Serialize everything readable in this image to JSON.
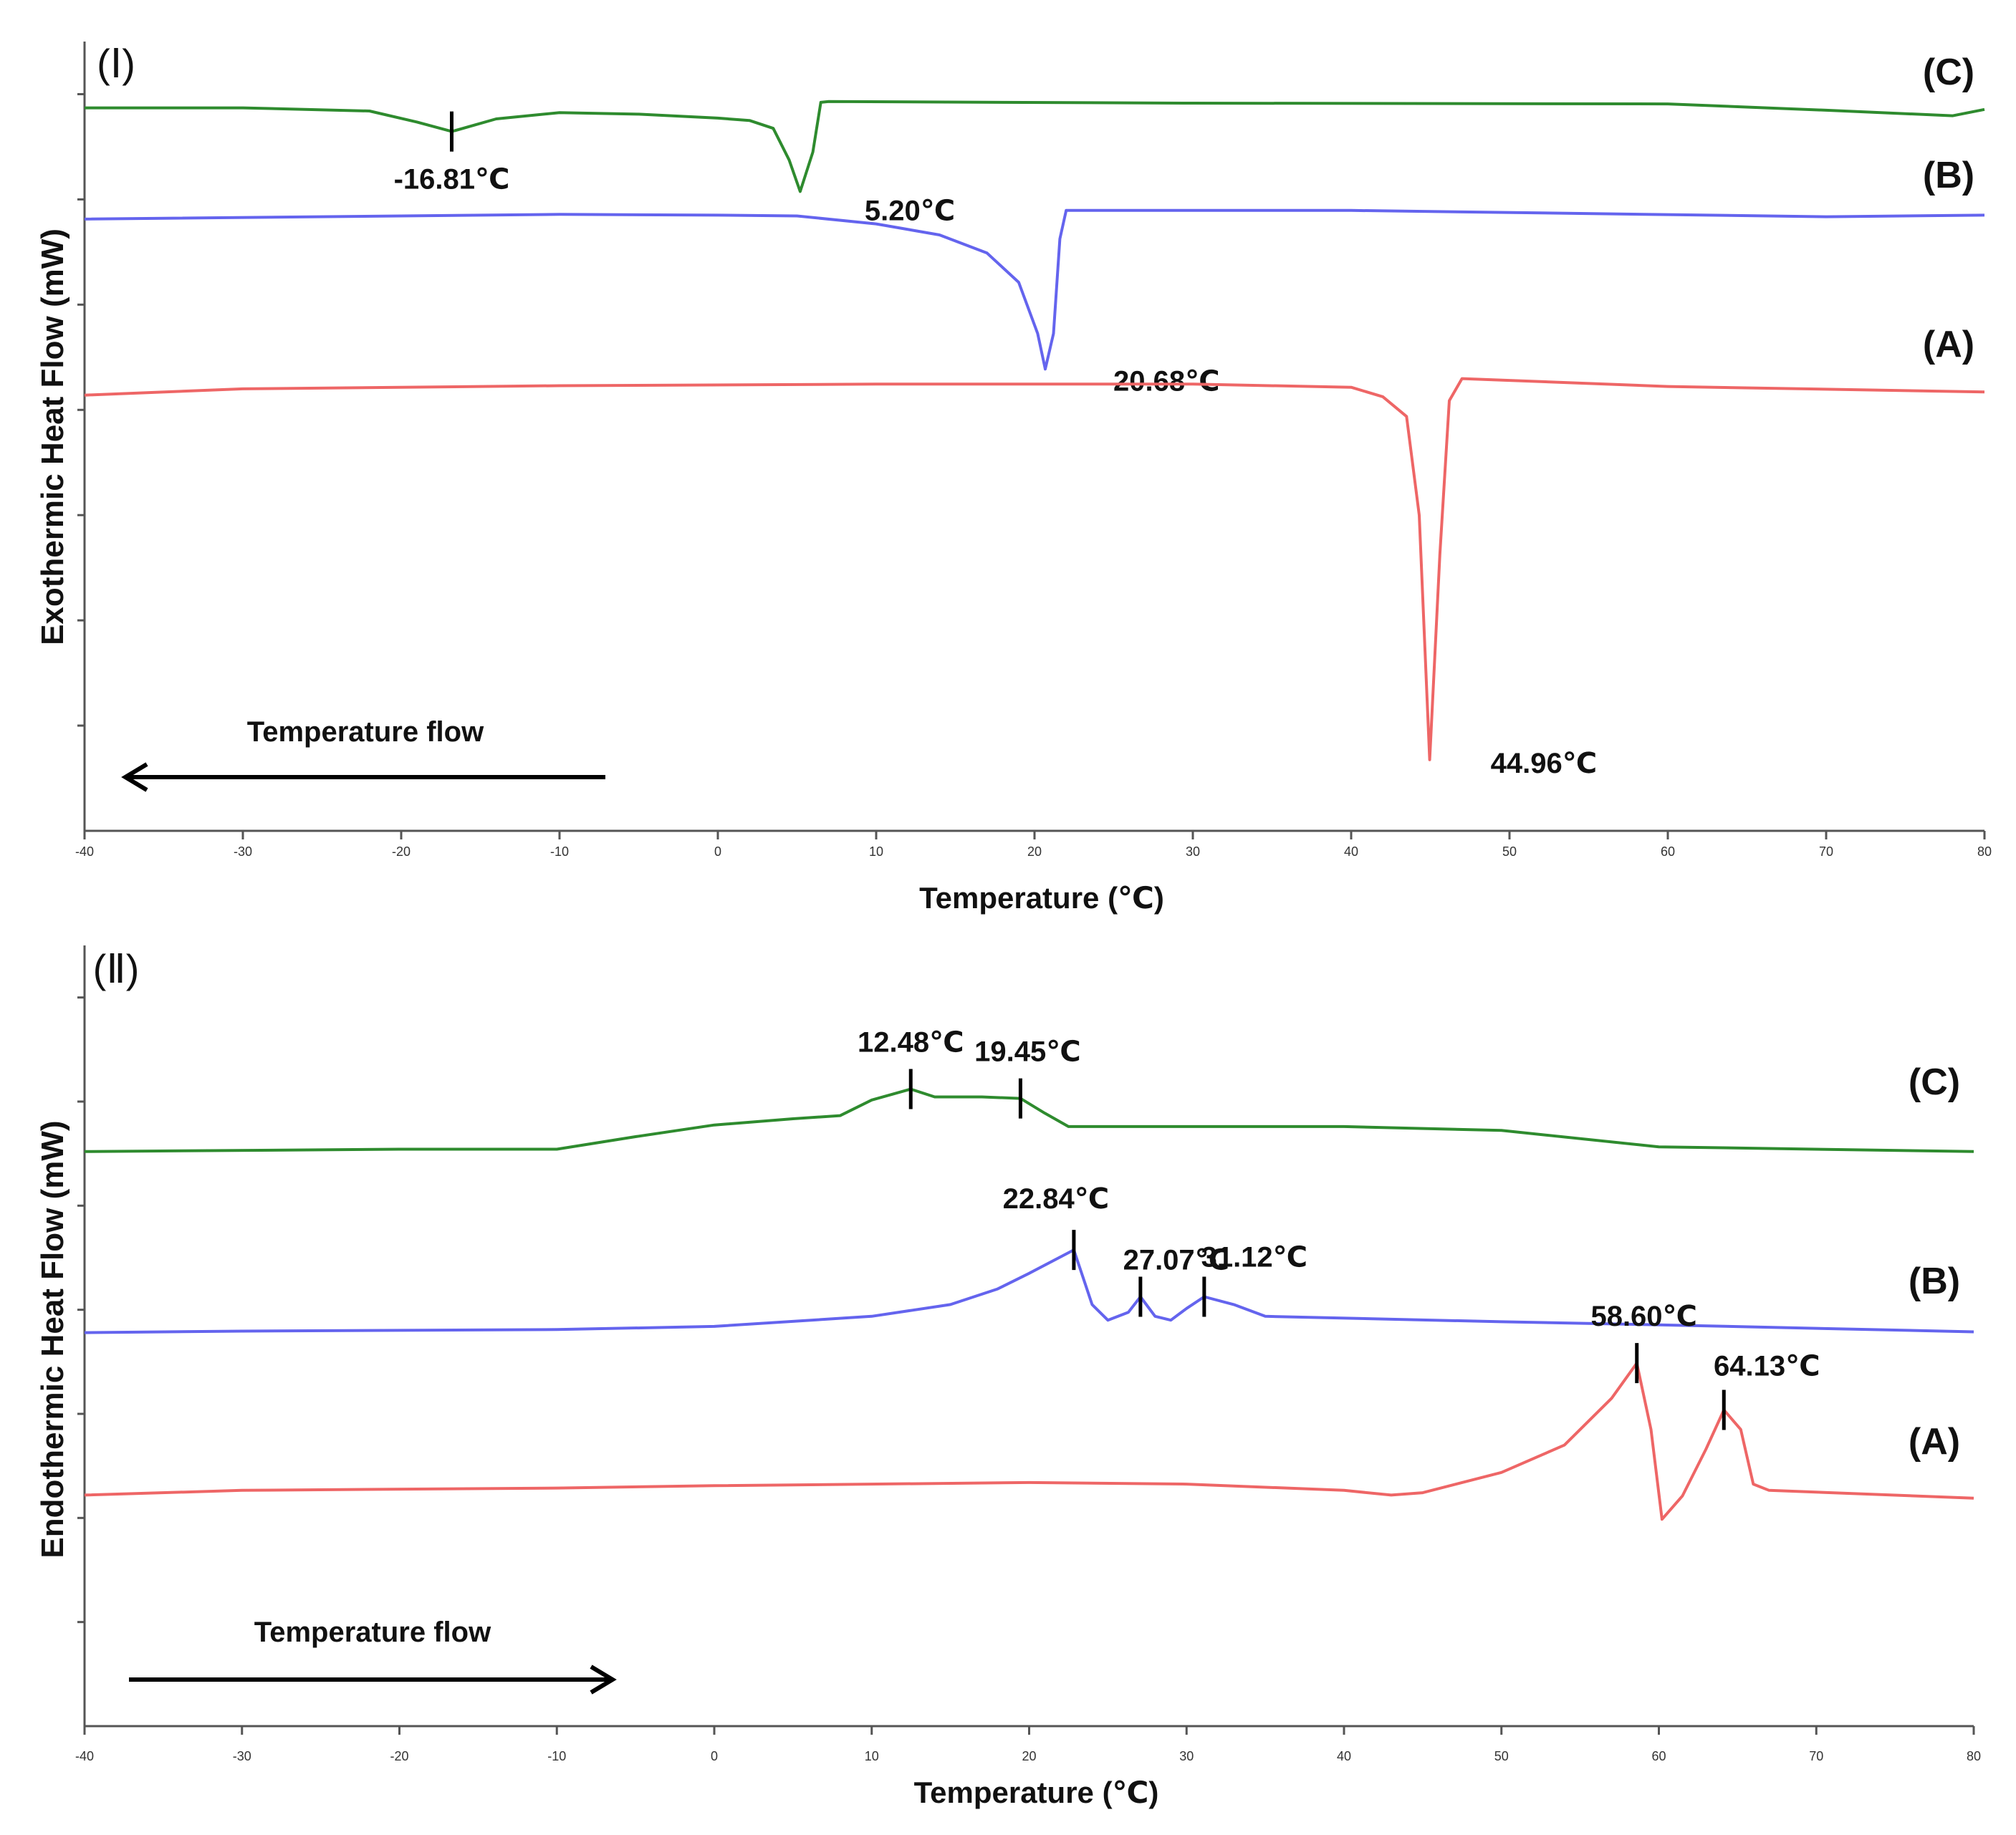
{
  "chart_data": [
    {
      "type": "line",
      "panel_label": "(Ⅰ)",
      "xlabel": "Temperature (℃)",
      "ylabel": "Exothermic Heat Flow (mW)",
      "xlim": [
        -40,
        80
      ],
      "ylim": [
        0,
        100
      ],
      "xticks": [
        "-40",
        "-30",
        "-20",
        "-10",
        "0",
        "10",
        "20",
        "30",
        "40",
        "50",
        "60",
        "70",
        "80"
      ],
      "ytick_count": 7,
      "flow_text": "Temperature flow",
      "flow_direction": "left",
      "series": [
        {
          "name": "(C)",
          "color": "#2e8b2e",
          "points": [
            [
              -40,
              91.6
            ],
            [
              -30,
              91.6
            ],
            [
              -22,
              91.2
            ],
            [
              -19,
              89.8
            ],
            [
              -16.8,
              88.6
            ],
            [
              -14,
              90.2
            ],
            [
              -10,
              91.0
            ],
            [
              -5,
              90.8
            ],
            [
              0,
              90.3
            ],
            [
              2,
              90.0
            ],
            [
              3.5,
              89.0
            ],
            [
              4.5,
              85.0
            ],
            [
              5.2,
              81.0
            ],
            [
              6,
              86.0
            ],
            [
              6.5,
              92.3
            ],
            [
              7,
              92.4
            ],
            [
              30,
              92.2
            ],
            [
              60,
              92.1
            ],
            [
              70,
              91.3
            ],
            [
              78,
              90.6
            ],
            [
              80,
              91.4
            ]
          ],
          "peaks": [
            {
              "x": -16.81,
              "label": "-16.81℃",
              "marker": true,
              "label_pos": "below"
            },
            {
              "x": 5.2,
              "label": "5.20℃",
              "marker": false,
              "label_pos": "right"
            }
          ]
        },
        {
          "name": "(B)",
          "color": "#6464ee",
          "points": [
            [
              -40,
              77.5
            ],
            [
              -10,
              78.1
            ],
            [
              0,
              78.0
            ],
            [
              5,
              77.9
            ],
            [
              10,
              76.9
            ],
            [
              14,
              75.5
            ],
            [
              17,
              73.2
            ],
            [
              19,
              69.5
            ],
            [
              20.2,
              63.0
            ],
            [
              20.68,
              58.5
            ],
            [
              21.2,
              63.0
            ],
            [
              21.6,
              75.0
            ],
            [
              22.0,
              78.6
            ],
            [
              40,
              78.6
            ],
            [
              70,
              77.8
            ],
            [
              80,
              78.0
            ]
          ],
          "peaks": [
            {
              "x": 20.68,
              "label": "20.68℃",
              "marker": false,
              "label_pos": "right"
            }
          ]
        },
        {
          "name": "(A)",
          "color": "#ee6666",
          "points": [
            [
              -40,
              55.2
            ],
            [
              -30,
              56.0
            ],
            [
              -10,
              56.4
            ],
            [
              10,
              56.6
            ],
            [
              30,
              56.6
            ],
            [
              40,
              56.2
            ],
            [
              42,
              55.0
            ],
            [
              43.5,
              52.5
            ],
            [
              44.3,
              40.0
            ],
            [
              44.96,
              9.0
            ],
            [
              45.6,
              35.0
            ],
            [
              46.2,
              54.5
            ],
            [
              47,
              57.3
            ],
            [
              60,
              56.3
            ],
            [
              80,
              55.6
            ]
          ],
          "peaks": [
            {
              "x": 44.96,
              "label": "44.96℃",
              "marker": false,
              "label_pos": "right"
            }
          ]
        }
      ]
    },
    {
      "type": "line",
      "panel_label": "(Ⅱ)",
      "xlabel": "Temperature (℃)",
      "ylabel": "Endothermic Heat Flow (mW)",
      "xlim": [
        -40,
        80
      ],
      "ylim": [
        0,
        100
      ],
      "xticks": [
        "-40",
        "-30",
        "-20",
        "-10",
        "0",
        "10",
        "20",
        "30",
        "40",
        "50",
        "60",
        "70",
        "80"
      ],
      "ytick_count": 7,
      "flow_text": "Temperature flow",
      "flow_direction": "right",
      "series": [
        {
          "name": "(C)",
          "color": "#2e8b2e",
          "points": [
            [
              -40,
              73.6
            ],
            [
              -20,
              73.9
            ],
            [
              -10,
              73.9
            ],
            [
              -5,
              75.5
            ],
            [
              0,
              77.0
            ],
            [
              5,
              77.8
            ],
            [
              8,
              78.2
            ],
            [
              10,
              80.2
            ],
            [
              12.48,
              81.6
            ],
            [
              14,
              80.6
            ],
            [
              17,
              80.6
            ],
            [
              19.45,
              80.4
            ],
            [
              21,
              78.5
            ],
            [
              22.5,
              76.8
            ],
            [
              40,
              76.8
            ],
            [
              50,
              76.3
            ],
            [
              60,
              74.2
            ],
            [
              80,
              73.6
            ]
          ],
          "peaks": [
            {
              "x": 12.48,
              "label": "12.48℃",
              "marker": true,
              "label_pos": "above"
            },
            {
              "x": 19.45,
              "label": "19.45℃",
              "marker": true,
              "label_pos": "above"
            }
          ]
        },
        {
          "name": "(B)",
          "color": "#6464ee",
          "points": [
            [
              -40,
              50.4
            ],
            [
              -30,
              50.6
            ],
            [
              -10,
              50.8
            ],
            [
              0,
              51.2
            ],
            [
              10,
              52.5
            ],
            [
              15,
              54.0
            ],
            [
              18,
              56.0
            ],
            [
              20,
              58.0
            ],
            [
              22.84,
              61.0
            ],
            [
              24,
              54.0
            ],
            [
              25,
              52.0
            ],
            [
              26.3,
              53.0
            ],
            [
              27.07,
              55.0
            ],
            [
              28,
              52.5
            ],
            [
              29,
              52.0
            ],
            [
              30,
              53.5
            ],
            [
              31.12,
              55.0
            ],
            [
              33,
              54.0
            ],
            [
              35,
              52.5
            ],
            [
              50,
              51.8
            ],
            [
              60,
              51.4
            ],
            [
              80,
              50.5
            ]
          ],
          "peaks": [
            {
              "x": 22.84,
              "label": "22.84℃",
              "marker": true,
              "label_pos": "above"
            },
            {
              "x": 27.07,
              "label": "27.07℃",
              "marker": true,
              "label_pos": "above"
            },
            {
              "x": 31.12,
              "label": "31.12℃",
              "marker": true,
              "label_pos": "above"
            }
          ]
        },
        {
          "name": "(A)",
          "color": "#ee6666",
          "points": [
            [
              -40,
              29.6
            ],
            [
              -30,
              30.2
            ],
            [
              -10,
              30.5
            ],
            [
              0,
              30.8
            ],
            [
              20,
              31.2
            ],
            [
              30,
              31.0
            ],
            [
              40,
              30.2
            ],
            [
              43,
              29.6
            ],
            [
              45,
              29.9
            ],
            [
              50,
              32.5
            ],
            [
              54,
              36.0
            ],
            [
              57,
              42.0
            ],
            [
              58.6,
              46.5
            ],
            [
              59.5,
              38.0
            ],
            [
              60.2,
              26.5
            ],
            [
              61.5,
              29.5
            ],
            [
              63,
              35.5
            ],
            [
              64.13,
              40.5
            ],
            [
              65.2,
              38.0
            ],
            [
              66,
              31.0
            ],
            [
              67,
              30.2
            ],
            [
              80,
              29.2
            ]
          ],
          "peaks": [
            {
              "x": 58.6,
              "label": "58.60℃",
              "marker": true,
              "label_pos": "above"
            },
            {
              "x": 64.13,
              "label": "64.13℃",
              "marker": true,
              "label_pos": "above"
            }
          ]
        }
      ]
    }
  ]
}
